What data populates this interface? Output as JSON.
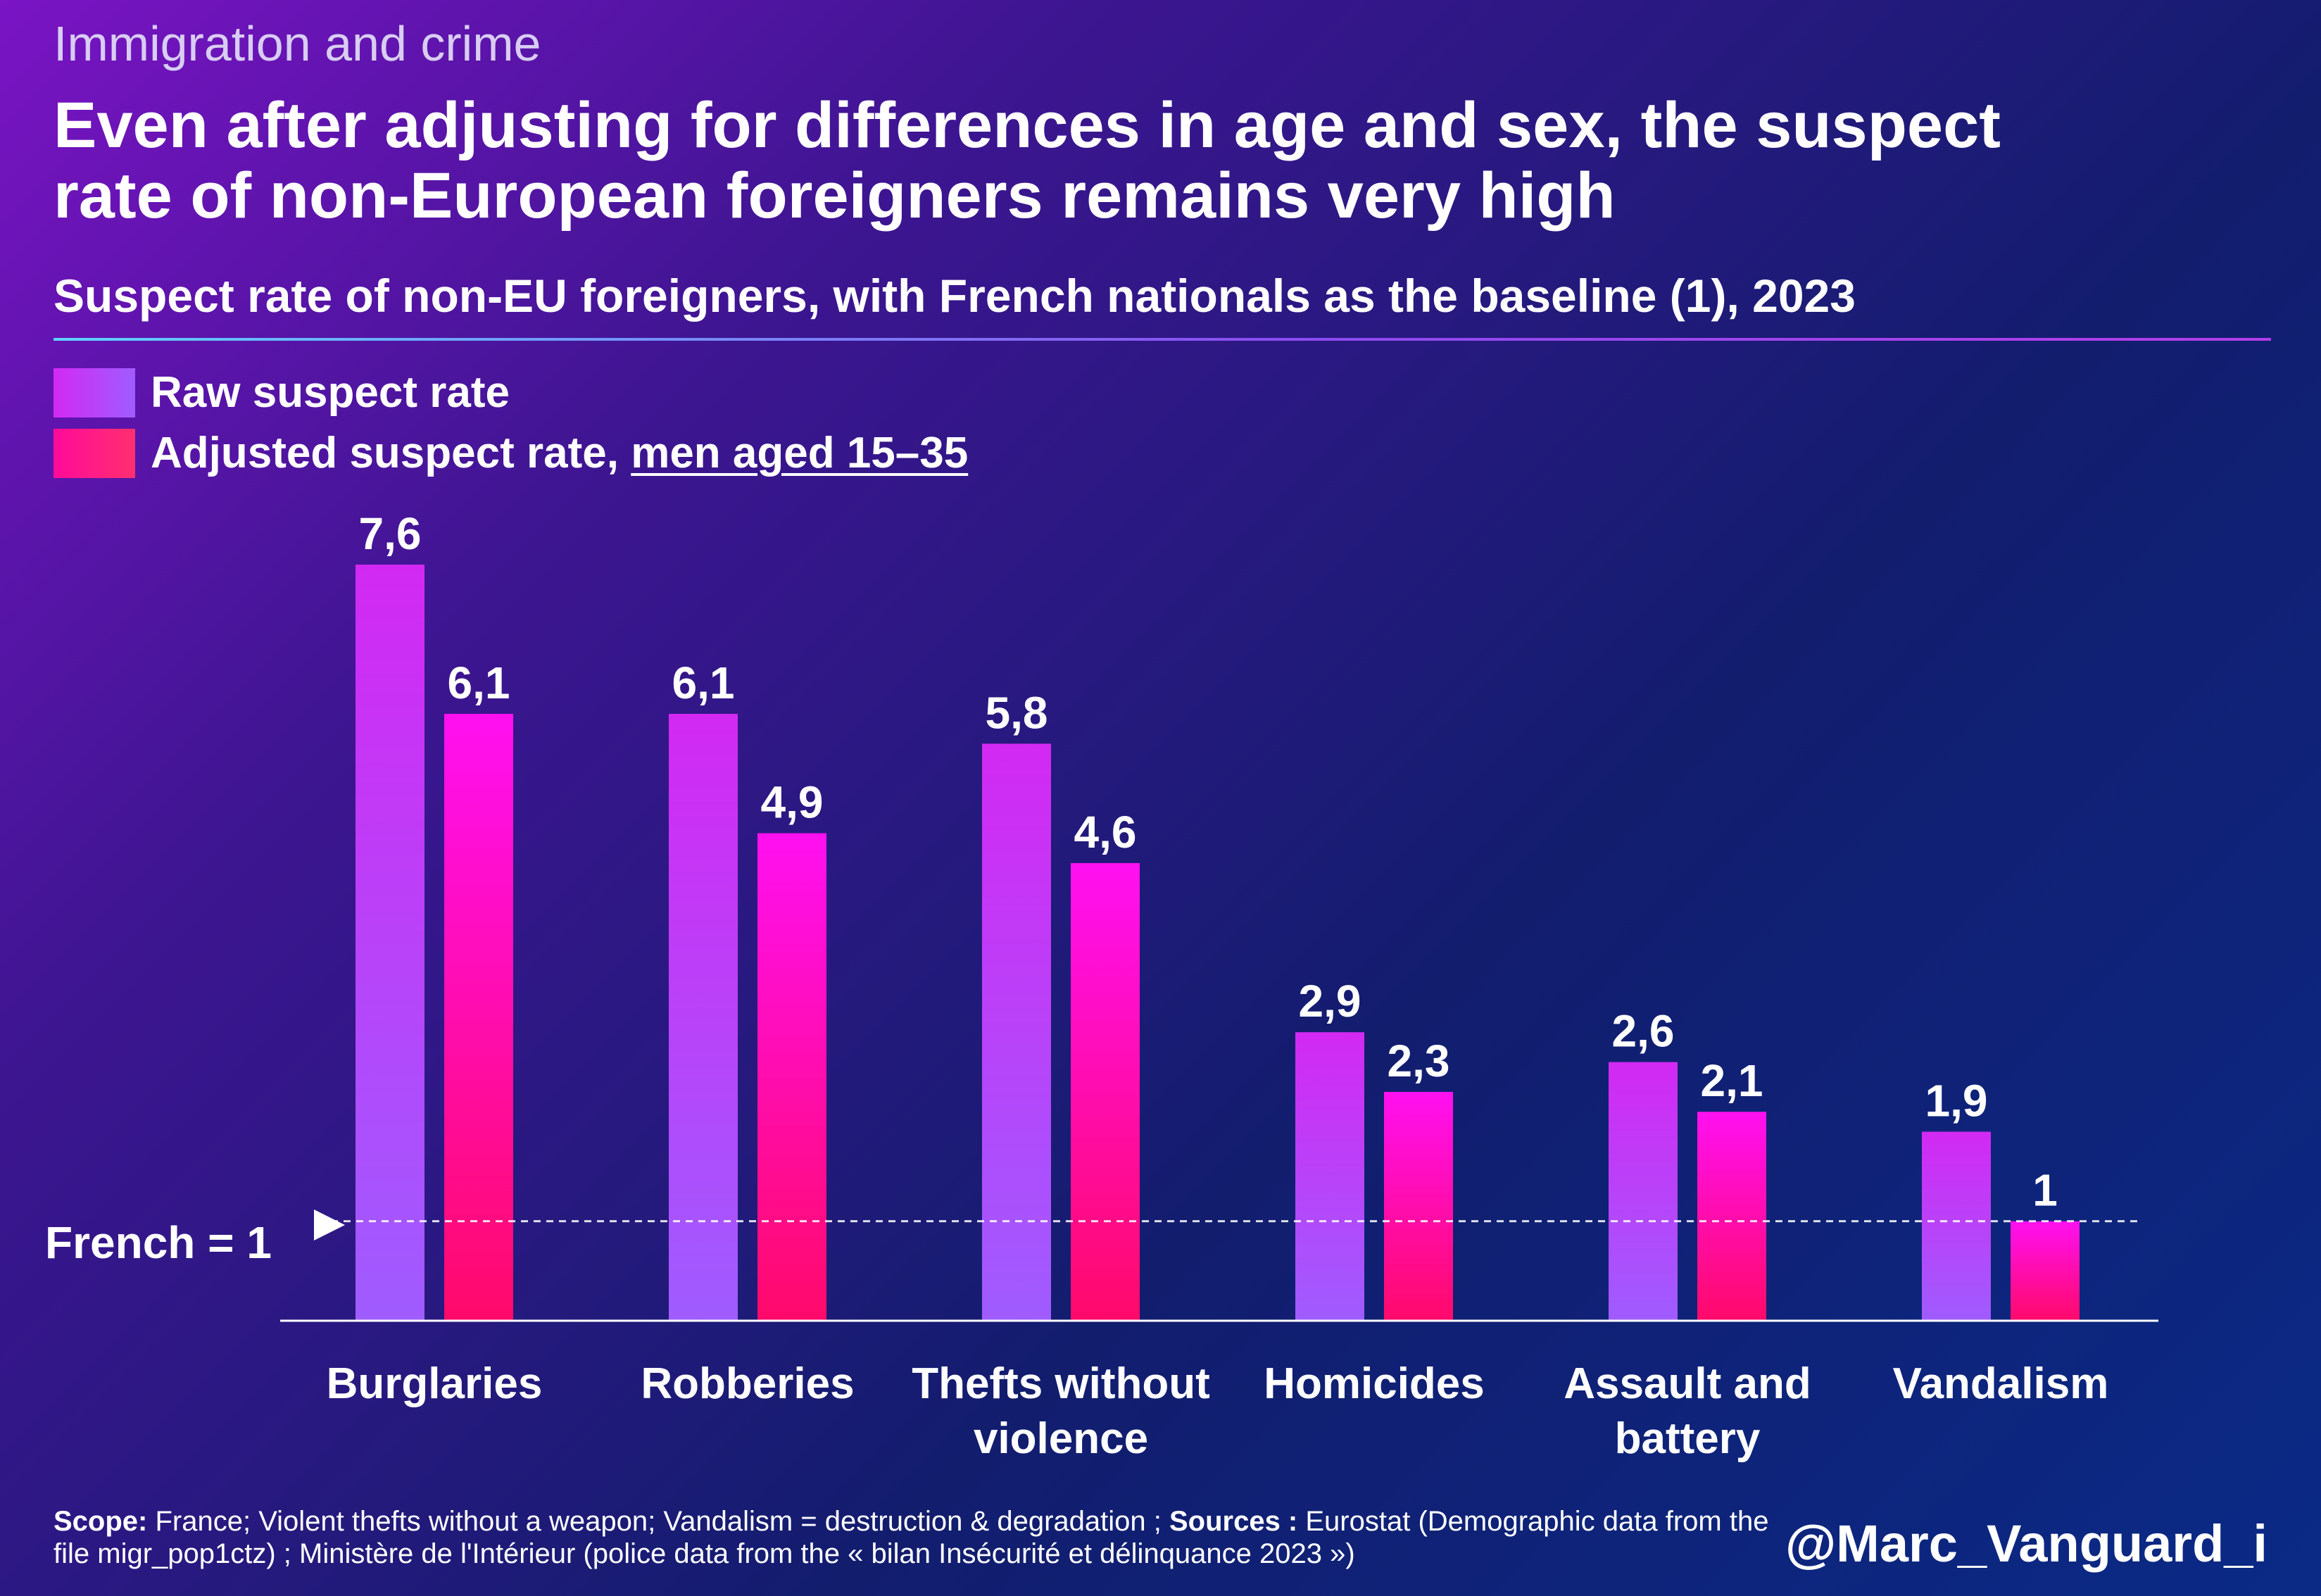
{
  "kicker": "Immigration and crime",
  "headline": "Even after adjusting for differences in age and sex, the suspect rate of non-European foreigners remains very high",
  "subtitle": "Suspect rate of non-EU foreigners, with French nationals as the baseline (1), 2023",
  "legend": {
    "raw": "Raw suspect rate",
    "adjusted_prefix": "Adjusted suspect rate, ",
    "adjusted_link": "men aged 15–35"
  },
  "baseline_label": "French = 1",
  "footnote": {
    "scope_label": "Scope:",
    "scope_text": " France; Violent thefts without a weapon; Vandalism = destruction & degradation ; ",
    "sources_label": "Sources :",
    "sources_text": " Eurostat (Demographic data from the file migr_pop1ctz) ; Ministère de l'Intérieur (police data from the « bilan Insécurité et délinquance 2023 »)"
  },
  "handle": "@Marc_Vanguard_i",
  "colors": {
    "raw_top": "#d229f2",
    "raw_bottom": "#9f5cff",
    "adjusted_top": "#ff10f0",
    "adjusted_bottom": "#ff0a6a"
  },
  "chart_data": {
    "type": "bar",
    "categories": [
      [
        "Burglaries"
      ],
      [
        "Robberies"
      ],
      [
        "Thefts without",
        "violence"
      ],
      [
        "Homicides"
      ],
      [
        "Assault and",
        "battery"
      ],
      [
        "Vandalism"
      ]
    ],
    "series": [
      {
        "name": "Raw suspect rate",
        "values": [
          7.6,
          6.1,
          5.8,
          2.9,
          2.6,
          1.9
        ],
        "labels": [
          "7,6",
          "6,1",
          "5,8",
          "2,9",
          "2,6",
          "1,9"
        ]
      },
      {
        "name": "Adjusted suspect rate, men aged 15–35",
        "values": [
          6.1,
          4.9,
          4.6,
          2.3,
          2.1,
          1.0
        ],
        "labels": [
          "6,1",
          "4,9",
          "4,6",
          "2,3",
          "2,1",
          "1"
        ]
      }
    ],
    "baseline": 1,
    "ylim": [
      0,
      7.6
    ],
    "grid": false,
    "legend_position": "top-left"
  }
}
